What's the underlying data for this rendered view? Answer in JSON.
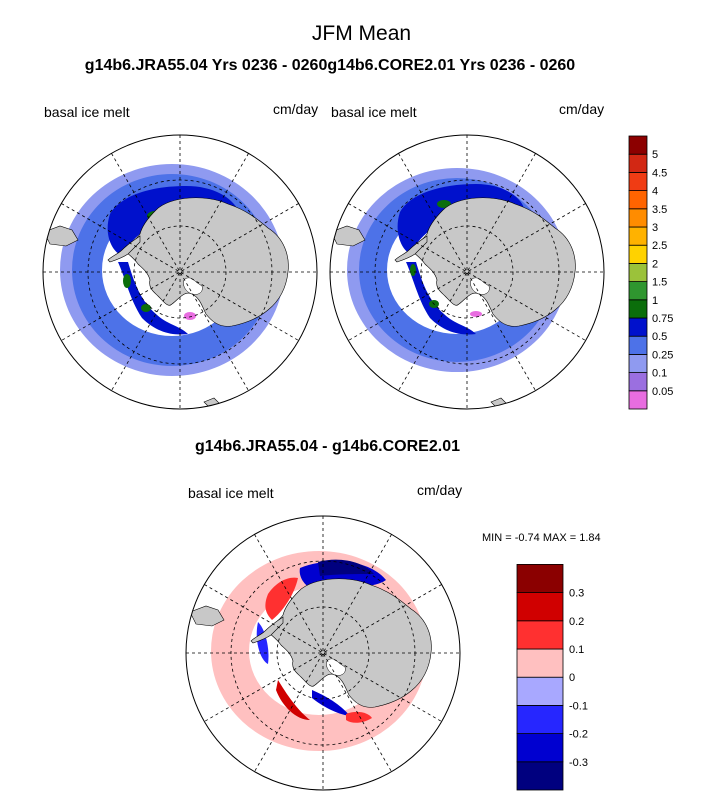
{
  "figure": {
    "title": "JFM Mean",
    "subtitle": "g14b6.JRA55.04  Yrs 0236 - 0260g14b6.CORE2.01  Yrs 0236 - 0260",
    "diff_title": "g14b6.JRA55.04 - g14b6.CORE2.01"
  },
  "panels": [
    {
      "left_label": "basal ice melt",
      "right_label": "cm/day"
    },
    {
      "left_label": "basal ice melt",
      "right_label": "cm/day"
    },
    {
      "left_label": "basal ice melt",
      "right_label": "cm/day"
    }
  ],
  "diff_stats": {
    "min_label": "MIN =",
    "min": "-0.74",
    "max_label": "MAX =",
    "max": "1.84"
  },
  "chart_data": [
    {
      "type": "heatmap",
      "projection": "south-polar-stereographic",
      "colorbar": {
        "levels": [
          "0.05",
          "0.1",
          "0.25",
          "0.5",
          "0.75",
          "1",
          "1.5",
          "2",
          "2.5",
          "3",
          "3.5",
          "4",
          "4.5",
          "5"
        ],
        "colors": [
          "#e86de0",
          "#9b6fe0",
          "#8f9af0",
          "#4d72e8",
          "#0011cc",
          "#0b6e0b",
          "#2f962f",
          "#9bc23a",
          "#ffd200",
          "#ffb200",
          "#ff8c00",
          "#ff6400",
          "#f03c14",
          "#d22814",
          "#8c0000"
        ]
      }
    },
    {
      "type": "heatmap",
      "projection": "south-polar-stereographic",
      "colorbar": {
        "levels": [
          "-0.3",
          "-0.2",
          "-0.1",
          "0",
          "0.1",
          "0.2",
          "0.3"
        ],
        "colors": [
          "#00007f",
          "#0000d0",
          "#2626ff",
          "#a8a8ff",
          "#ffc0c0",
          "#ff3030",
          "#d00000",
          "#8b0000"
        ]
      }
    }
  ],
  "colors": {
    "land": "#c8c8c8",
    "frame": "#000000"
  }
}
